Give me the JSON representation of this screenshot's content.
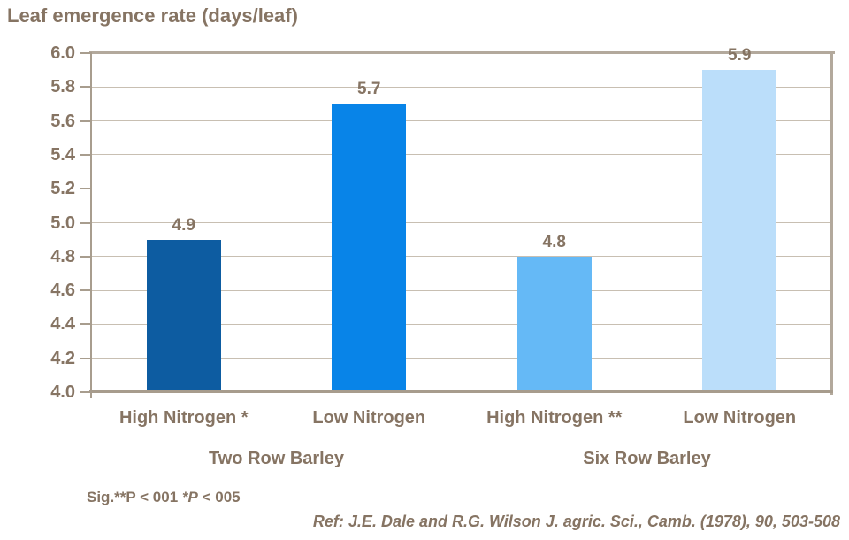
{
  "chart_data": {
    "type": "bar",
    "title": "Leaf emergence rate (days/leaf)",
    "categories": [
      "High Nitrogen *",
      "Low Nitrogen",
      "High Nitrogen **",
      "Low Nitrogen"
    ],
    "groups": [
      {
        "label": "Two Row Barley",
        "span": [
          0,
          1
        ]
      },
      {
        "label": "Six Row Barley",
        "span": [
          2,
          3
        ]
      }
    ],
    "values": [
      4.9,
      5.7,
      4.8,
      5.9
    ],
    "value_labels": [
      "4.9",
      "5.7",
      "4.8",
      "5.9"
    ],
    "bar_colors": [
      "#0d5ca1",
      "#0884e8",
      "#65b9f6",
      "#bbdefa"
    ],
    "xlabel": "",
    "ylabel": "Leaf emergence rate (days/leaf)",
    "ylim": [
      4.0,
      6.0
    ],
    "ytick_step": 0.2,
    "ytick_labels": [
      "6.0",
      "5.8",
      "5.6",
      "5.4",
      "5.2",
      "5.0",
      "4.8",
      "4.6",
      "4.4",
      "4.2",
      "4.0"
    ],
    "grid": true,
    "legend": false
  },
  "footnotes": {
    "sig_prefix": "Sig.**P < 001 ",
    "sig_italic": "*P",
    "sig_suffix": " < 005",
    "reference": "Ref: J.E. Dale and R.G. Wilson J. agric. Sci., Camb. (1978), 90, 503-508"
  },
  "colors": {
    "text": "#867463",
    "gridline": "#c8bfb2",
    "axis": "#a89d8e",
    "plot_border": "#b3a99c",
    "background": "#ffffff"
  }
}
